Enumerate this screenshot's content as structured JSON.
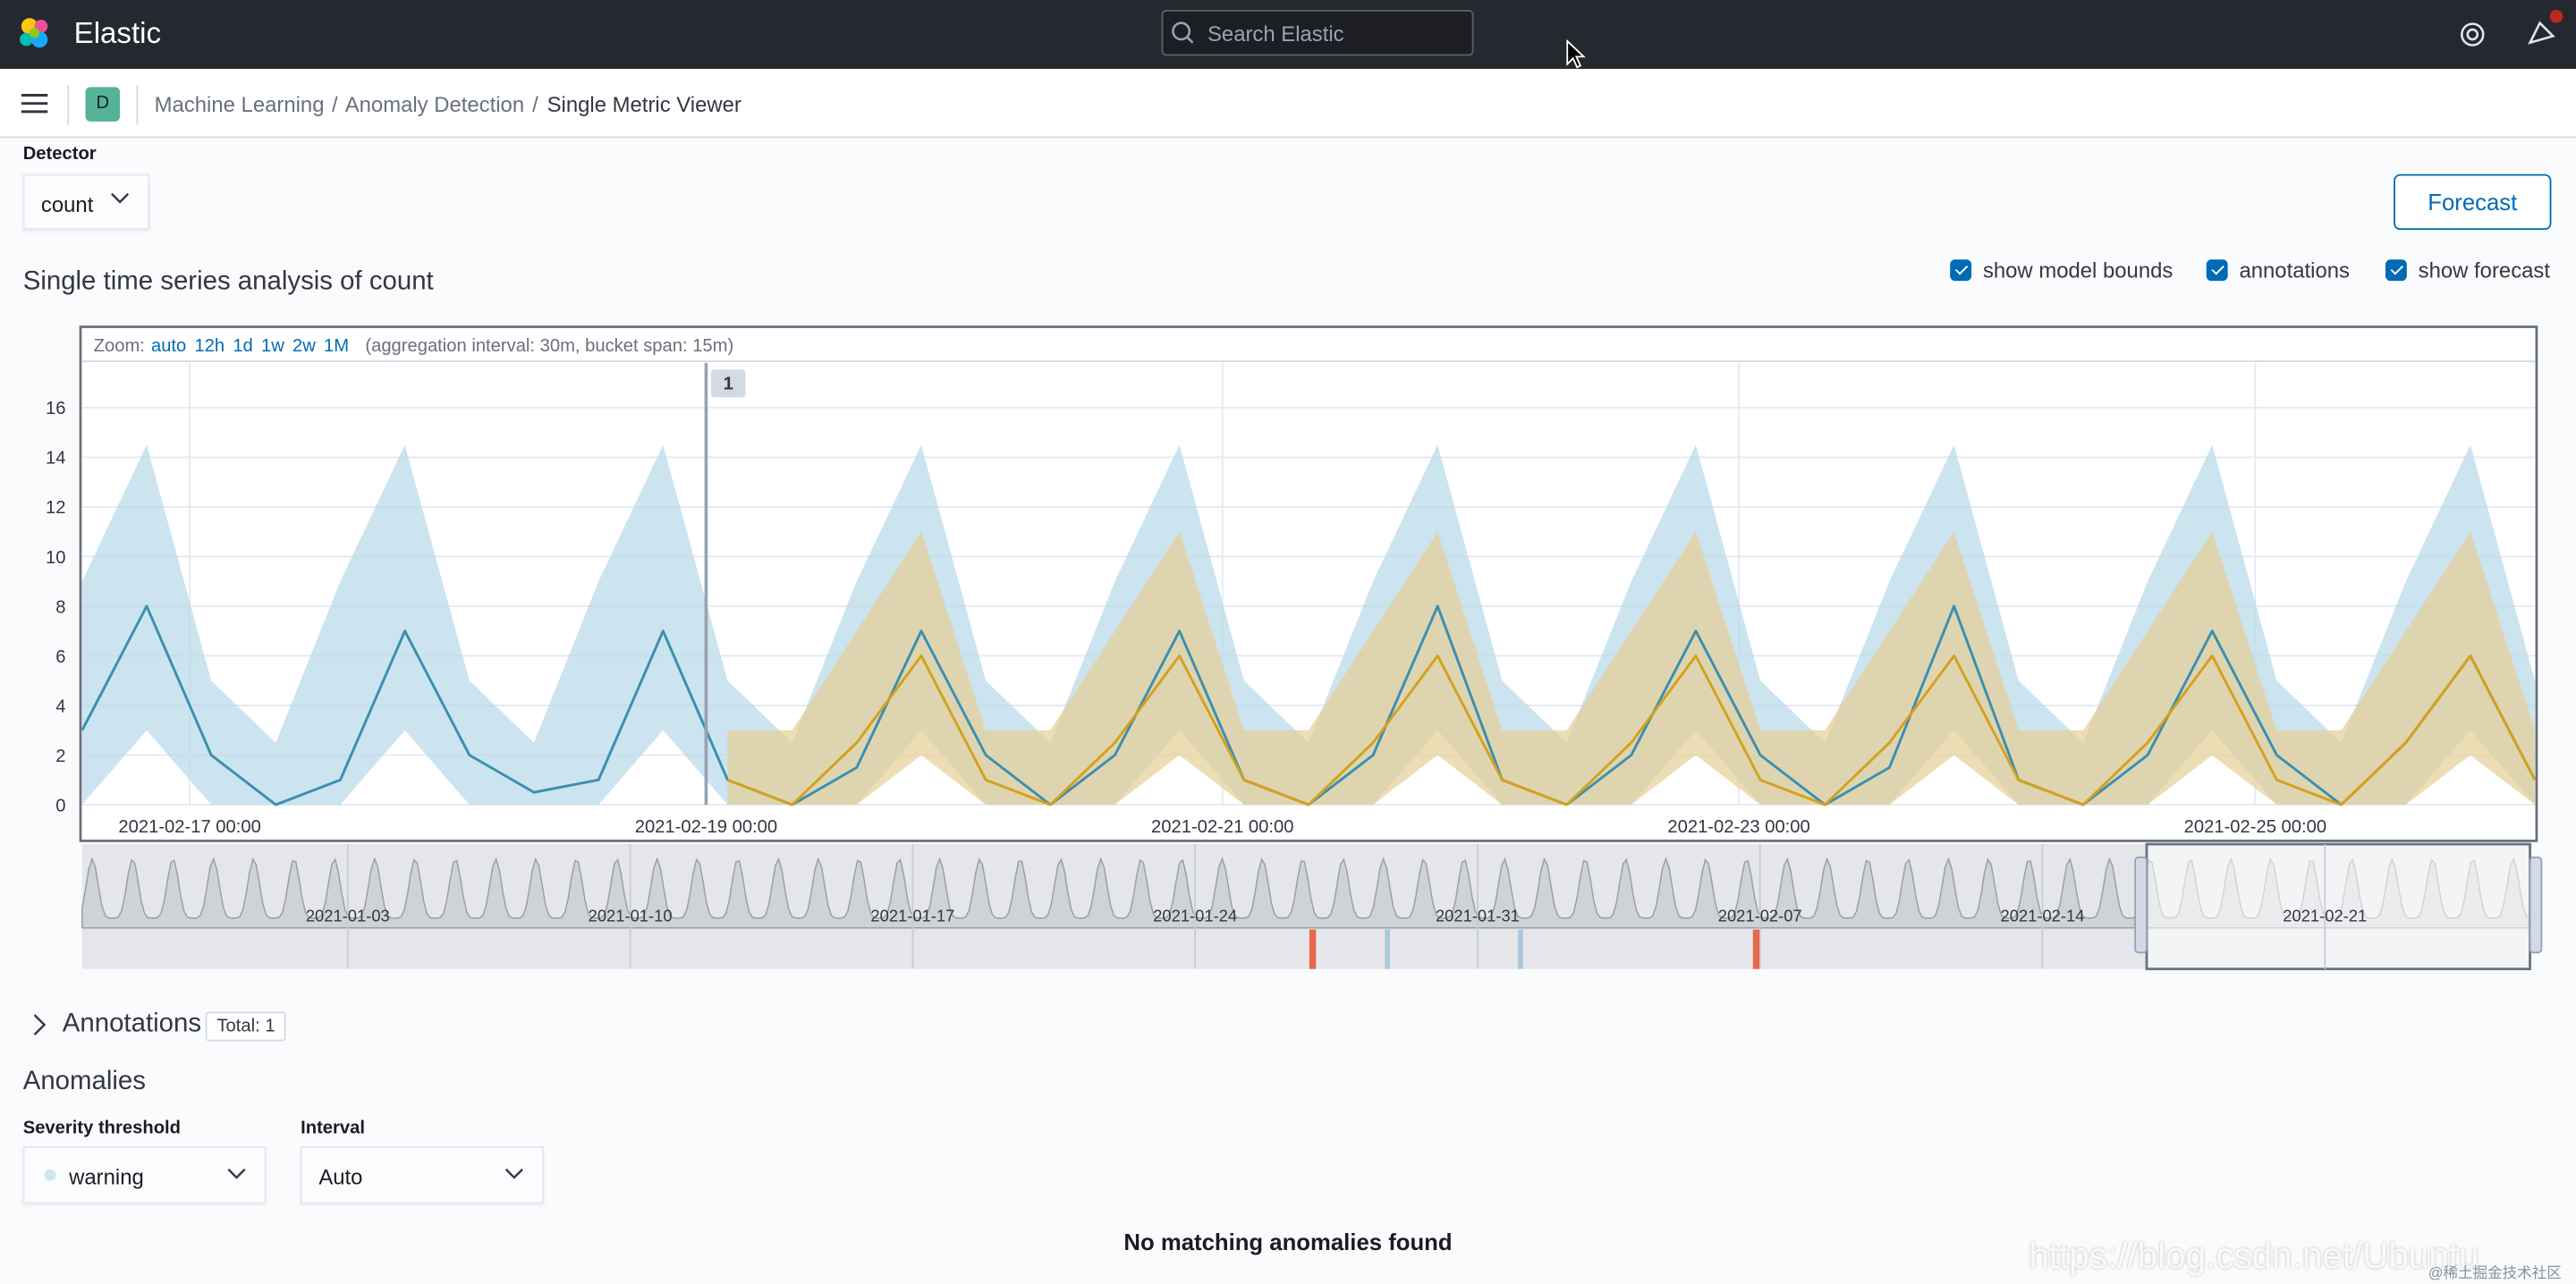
{
  "header": {
    "brand": "Elastic",
    "search_placeholder": "Search Elastic"
  },
  "breadcrumbs": {
    "space": "D",
    "items": [
      "Machine Learning",
      "Anomaly Detection",
      "Single Metric Viewer"
    ]
  },
  "detector": {
    "label": "Detector",
    "value": "count"
  },
  "forecast_button": "Forecast",
  "chart_title": "Single time series analysis of count",
  "toggles": [
    {
      "label": "show model bounds",
      "checked": true
    },
    {
      "label": "annotations",
      "checked": true
    },
    {
      "label": "show forecast",
      "checked": true
    }
  ],
  "chart": {
    "type": "line",
    "zoom_label": "Zoom:",
    "zoom_options": [
      "auto",
      "12h",
      "1d",
      "1w",
      "2w",
      "1M"
    ],
    "zoom_note": "(aggregation interval: 30m, bucket span: 15m)",
    "x": [
      "2021-02-16 14:00",
      "2021-02-16 20:00",
      "2021-02-17 02:00",
      "2021-02-17 08:00",
      "2021-02-17 14:00",
      "2021-02-17 20:00",
      "2021-02-18 02:00",
      "2021-02-18 08:00",
      "2021-02-18 14:00",
      "2021-02-18 20:00",
      "2021-02-19 02:00",
      "2021-02-19 08:00",
      "2021-02-19 14:00",
      "2021-02-19 20:00",
      "2021-02-20 02:00",
      "2021-02-20 08:00",
      "2021-02-20 14:00",
      "2021-02-20 20:00",
      "2021-02-21 02:00",
      "2021-02-21 08:00",
      "2021-02-21 14:00",
      "2021-02-21 20:00",
      "2021-02-22 02:00",
      "2021-02-22 08:00",
      "2021-02-22 14:00",
      "2021-02-22 20:00",
      "2021-02-23 02:00",
      "2021-02-23 08:00",
      "2021-02-23 14:00",
      "2021-02-23 20:00",
      "2021-02-24 02:00",
      "2021-02-24 08:00",
      "2021-02-24 14:00",
      "2021-02-24 20:00",
      "2021-02-25 02:00",
      "2021-02-25 08:00",
      "2021-02-25 14:00",
      "2021-02-25 20:00",
      "2021-02-26 02:00"
    ],
    "xlim": [
      "2021-02-16 14:00",
      "2021-02-26 02:00"
    ],
    "xticks": [
      "2021-02-17 00:00",
      "2021-02-19 00:00",
      "2021-02-21 00:00",
      "2021-02-23 00:00",
      "2021-02-25 00:00"
    ],
    "ylim": [
      0,
      17.8
    ],
    "yticks": [
      0,
      2,
      4,
      6,
      8,
      10,
      12,
      14,
      16
    ],
    "grid": true,
    "actual": {
      "color": "#3b8fb0",
      "values": [
        3,
        8,
        2,
        0,
        1,
        7,
        2,
        0.5,
        1,
        7,
        1,
        0,
        1.5,
        7,
        2,
        0,
        2,
        7,
        1,
        0,
        2,
        8,
        1,
        0,
        2,
        7,
        2,
        0,
        1.5,
        8,
        1,
        0,
        2,
        7,
        2,
        0,
        2.5,
        6,
        1
      ]
    },
    "model_bounds": {
      "color": "#b7d8e8",
      "upper": [
        9,
        14.5,
        5,
        2.5,
        9,
        14.5,
        5,
        2.5,
        9,
        14.5,
        5,
        2.5,
        9,
        14.5,
        5,
        2.5,
        9,
        14.5,
        5,
        2.5,
        9,
        14.5,
        5,
        2.5,
        9,
        14.5,
        5,
        2.5,
        9,
        14.5,
        5,
        2.5,
        9,
        14.5,
        5,
        2.5,
        9,
        14.5,
        5
      ],
      "lower": [
        0,
        3,
        0,
        0,
        0,
        3,
        0,
        0,
        0,
        3,
        0,
        0,
        0,
        3,
        0,
        0,
        0,
        3,
        0,
        0,
        0,
        3,
        0,
        0,
        0,
        3,
        0,
        0,
        0,
        3,
        0,
        0,
        0,
        3,
        0,
        0,
        0,
        3,
        0
      ]
    },
    "forecast": {
      "color": "#d4a11e",
      "band_color": "#e5cf95",
      "values": [
        null,
        null,
        null,
        null,
        null,
        null,
        null,
        null,
        null,
        null,
        1,
        0,
        2.5,
        6,
        1,
        0,
        2.5,
        6,
        1,
        0,
        2.5,
        6,
        1,
        0,
        2.5,
        6,
        1,
        0,
        2.5,
        6,
        1,
        0,
        2.5,
        6,
        1,
        0,
        2.5,
        6,
        1
      ],
      "upper": [
        null,
        null,
        null,
        null,
        null,
        null,
        null,
        null,
        null,
        null,
        3,
        3,
        7,
        11,
        3,
        3,
        7,
        11,
        3,
        3,
        7,
        11,
        3,
        3,
        7,
        11,
        3,
        3,
        7,
        11,
        3,
        3,
        7,
        11,
        3,
        3,
        7,
        11,
        3
      ],
      "lower": [
        null,
        null,
        null,
        null,
        null,
        null,
        null,
        null,
        null,
        null,
        0,
        0,
        0,
        2,
        0,
        0,
        0,
        2,
        0,
        0,
        0,
        2,
        0,
        0,
        0,
        2,
        0,
        0,
        0,
        2,
        0,
        0,
        0,
        2,
        0,
        0,
        0,
        2,
        0
      ]
    },
    "annotation": {
      "label": "1",
      "x": "2021-02-19 00:00"
    },
    "navigator": {
      "xlim": [
        "2020-12-27 10:00",
        "2021-02-26 02:00"
      ],
      "xticks": [
        "2021-01-03",
        "2021-01-10",
        "2021-01-17",
        "2021-01-24",
        "2021-01-31",
        "2021-02-07",
        "2021-02-14",
        "2021-02-21"
      ]
    }
  },
  "annotations": {
    "title": "Annotations",
    "total": "Total: 1"
  },
  "anomalies": {
    "title": "Anomalies",
    "severity_label": "Severity threshold",
    "severity_value": "warning",
    "interval_label": "Interval",
    "interval_value": "Auto",
    "empty_message": "No matching anomalies found"
  },
  "watermark": {
    "url": "https://blog.csdn.net/Ubuntu",
    "credit": "@稀土掘金技术社区"
  }
}
